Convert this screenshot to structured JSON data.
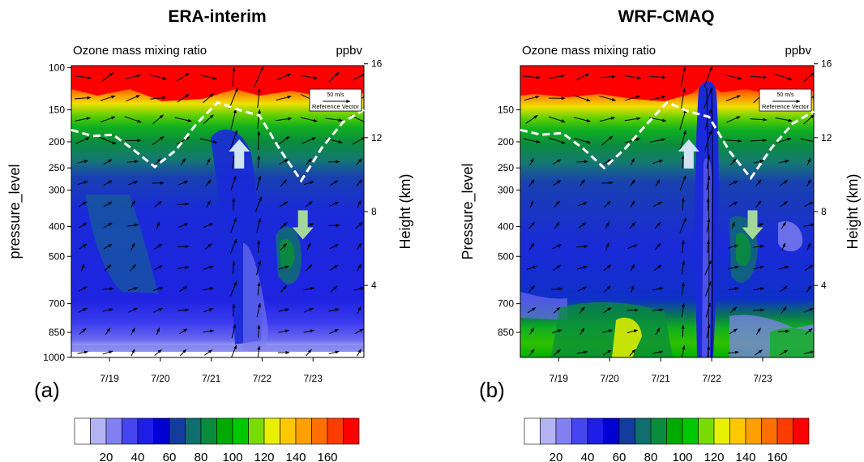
{
  "chart_data": [
    {
      "type": "heatmap",
      "panel_label": "(a)",
      "title": "ERA-interim",
      "field_label": "Ozone mass mixing ratio",
      "unit": "ppbv",
      "ylabel": "pressure_level",
      "y2label": "Height (km)",
      "y_ticks": [
        "100",
        "150",
        "200",
        "250",
        "300",
        "400",
        "500",
        "700",
        "850",
        "1000"
      ],
      "y_tick_values": [
        100,
        150,
        200,
        250,
        300,
        400,
        500,
        700,
        850,
        1000
      ],
      "y2_ticks": [
        "16",
        "12",
        "8",
        "4"
      ],
      "y2_tick_values": [
        16,
        12,
        8,
        4
      ],
      "x_ticks": [
        "7/19",
        "7/20",
        "7/21",
        "7/22",
        "7/23"
      ],
      "x_tick_values": [
        19,
        20,
        21,
        22,
        23
      ],
      "xlim": [
        18.25,
        24.0
      ],
      "ylim_hpa": [
        100,
        1000
      ],
      "tropopause_hpa": [
        180,
        190,
        188,
        215,
        248,
        215,
        170,
        140,
        150,
        158,
        215,
        278,
        210,
        168,
        150
      ],
      "reference_vector": {
        "speed": "50 m/s",
        "label": "Reference Vector"
      },
      "arrows": [
        {
          "direction": "up",
          "x": 21.55,
          "hpa": 222,
          "color": "#cfe4f2"
        },
        {
          "direction": "down",
          "x": 22.8,
          "hpa": 395,
          "color": "#a6d79a"
        }
      ]
    },
    {
      "type": "heatmap",
      "panel_label": "(b)",
      "title": "WRF-CMAQ",
      "field_label": "Ozone mass mixing ratio",
      "unit": "ppbv",
      "ylabel": "Pressure_level",
      "y2label": "Height (km)",
      "y_ticks": [
        "150",
        "200",
        "250",
        "300",
        "400",
        "500",
        "700",
        "850"
      ],
      "y_tick_values": [
        150,
        200,
        250,
        300,
        400,
        500,
        700,
        850
      ],
      "y2_ticks": [
        "16",
        "12",
        "8",
        "4"
      ],
      "y2_tick_values": [
        16,
        12,
        8,
        4
      ],
      "x_ticks": [
        "7/19",
        "7/20",
        "7/21",
        "7/22",
        "7/23"
      ],
      "x_tick_values": [
        19,
        20,
        21,
        22,
        23
      ],
      "xlim": [
        18.25,
        24.0
      ],
      "ylim_hpa": [
        100,
        1000
      ],
      "tropopause_hpa": [
        180,
        188,
        185,
        212,
        250,
        212,
        172,
        140,
        152,
        160,
        218,
        272,
        210,
        170,
        152
      ],
      "reference_vector": {
        "speed": "50 m/s",
        "label": "Reference Vector"
      },
      "arrows": [
        {
          "direction": "up",
          "x": 21.55,
          "hpa": 222,
          "color": "#cfe4f2"
        },
        {
          "direction": "down",
          "x": 22.8,
          "hpa": 395,
          "color": "#a6d79a"
        }
      ]
    }
  ],
  "colorbar": {
    "levels": [
      "20",
      "40",
      "60",
      "80",
      "100",
      "120",
      "140",
      "160"
    ],
    "colors": [
      "#ffffff",
      "#b4b4f5",
      "#8080f0",
      "#4646f0",
      "#1e1ee6",
      "#0000d2",
      "#143ca0",
      "#0f6e6e",
      "#0a8c3c",
      "#00aa00",
      "#00c800",
      "#78dc00",
      "#e6f000",
      "#ffc800",
      "#ffa000",
      "#ff6e00",
      "#ff3c00",
      "#ff0000"
    ]
  }
}
